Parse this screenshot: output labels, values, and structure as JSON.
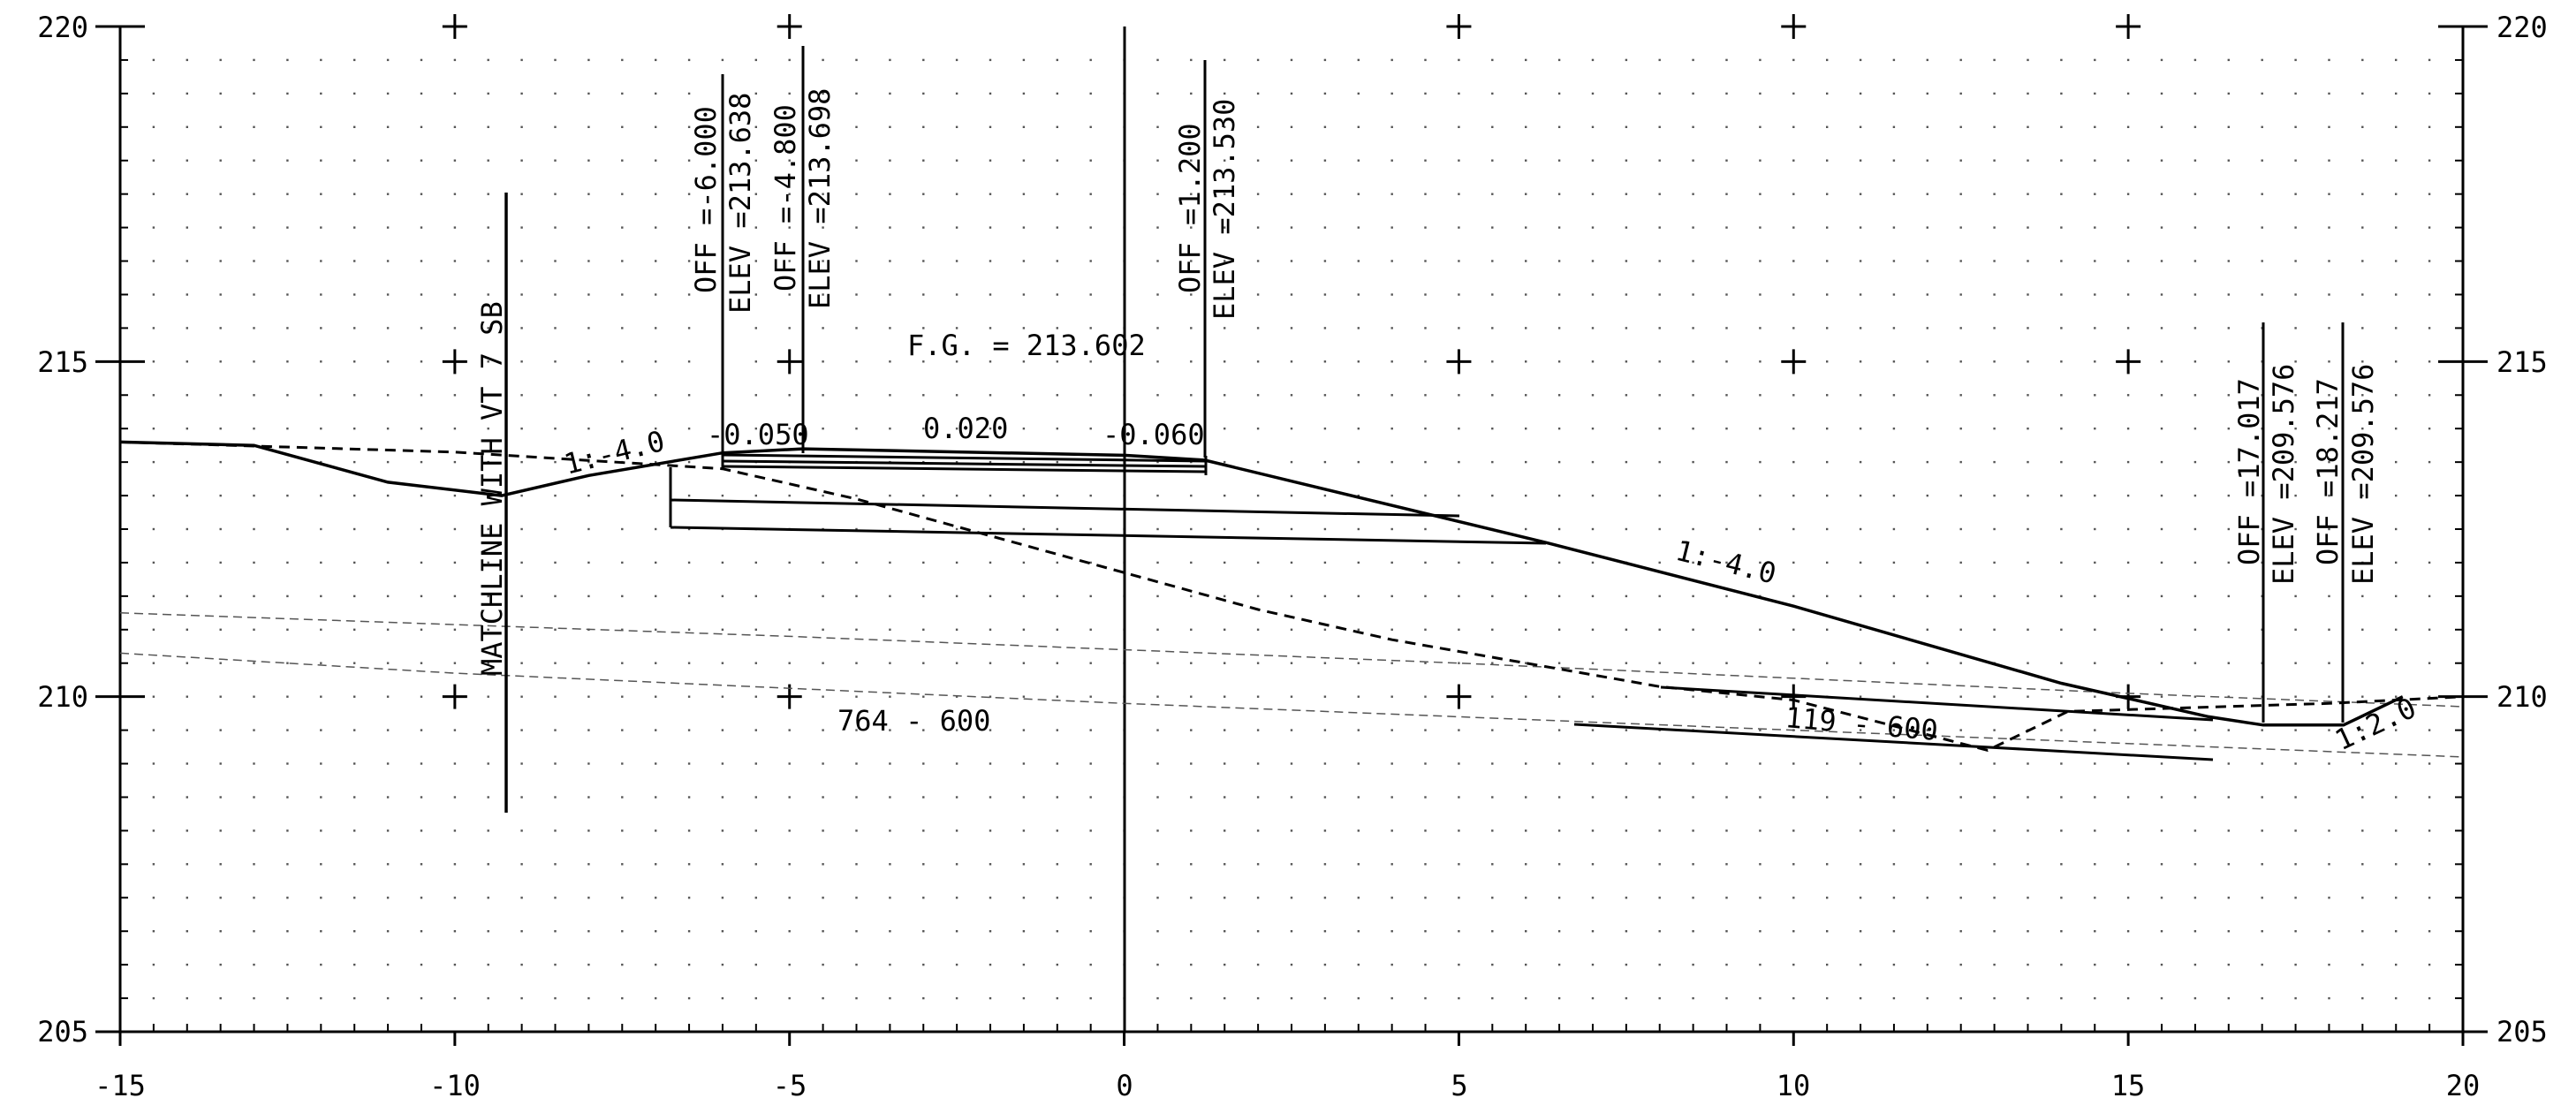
{
  "x_axis": {
    "min": -15,
    "max": 20,
    "tick_labels": [
      "-15",
      "-10",
      "-5",
      "0",
      "5",
      "10",
      "15",
      "20"
    ]
  },
  "y_axis": {
    "min": 205,
    "max": 220,
    "tick_labels": [
      "205",
      "210",
      "215",
      "220"
    ]
  },
  "grid": "dotted every 0.5 offset units and 0.5 elevation units; plus markers every 5 units",
  "annotations": {
    "matchline": "MATCHLINE WITH VT 7 SB",
    "off_left_edge": "OFF =-6.000",
    "elev_left_edge": "ELEV =213.638",
    "off_left_shoulder": "OFF =-4.800",
    "elev_left_shoulder": "ELEV =213.698",
    "off_right": "OFF =1.200",
    "elev_right": "ELEV =213.530",
    "fg": "F.G. = 213.602",
    "slope_left": "1:-4.0",
    "slope_right": "1:-4.0",
    "slope_far_right": "1:2.0",
    "cross_slope_1": "-0.050",
    "cross_slope_2": "0.020",
    "cross_slope_3": "-0.060",
    "line_764": "764 - 600",
    "line_119": "119 - 600",
    "off_ditch_left": "OFF =17.017",
    "elev_ditch_left": "ELEV =209.576",
    "off_ditch_right": "OFF =18.217",
    "elev_ditch_right": "ELEV =209.576"
  },
  "lines": {
    "proposed_finished_grade": [
      [
        -15,
        213.8
      ],
      [
        -13,
        213.75
      ],
      [
        -11,
        213.2
      ],
      [
        -9.3,
        213.0
      ],
      [
        -8,
        213.3
      ],
      [
        -6,
        213.638
      ],
      [
        -4.8,
        213.698
      ],
      [
        0,
        213.602
      ],
      [
        1.2,
        213.53
      ],
      [
        6.3,
        212.3
      ],
      [
        10,
        211.35
      ],
      [
        14,
        210.2
      ],
      [
        16.2,
        209.7
      ],
      [
        17.017,
        209.576
      ],
      [
        18.217,
        209.576
      ],
      [
        19.1,
        210.0
      ]
    ],
    "existing_ground": [
      [
        -15,
        213.8
      ],
      [
        -10,
        213.65
      ],
      [
        -6,
        213.4
      ],
      [
        -4,
        212.95
      ],
      [
        -2,
        212.4
      ],
      [
        0,
        211.85
      ],
      [
        2,
        211.3
      ],
      [
        4,
        210.85
      ],
      [
        6,
        210.5
      ],
      [
        8,
        210.15
      ],
      [
        10,
        209.95
      ],
      [
        12.9,
        209.2
      ],
      [
        14.1,
        209.78
      ],
      [
        18,
        209.9
      ],
      [
        20,
        210.0
      ]
    ],
    "line_764_600": [
      [
        -15,
        210.65
      ],
      [
        -10,
        210.35
      ],
      [
        0,
        209.9
      ],
      [
        10,
        209.5
      ],
      [
        20,
        209.1
      ]
    ],
    "faint_upper": [
      [
        -15,
        211.25
      ],
      [
        -5,
        210.9
      ],
      [
        5,
        210.5
      ],
      [
        15,
        210.05
      ],
      [
        20,
        209.85
      ]
    ]
  }
}
